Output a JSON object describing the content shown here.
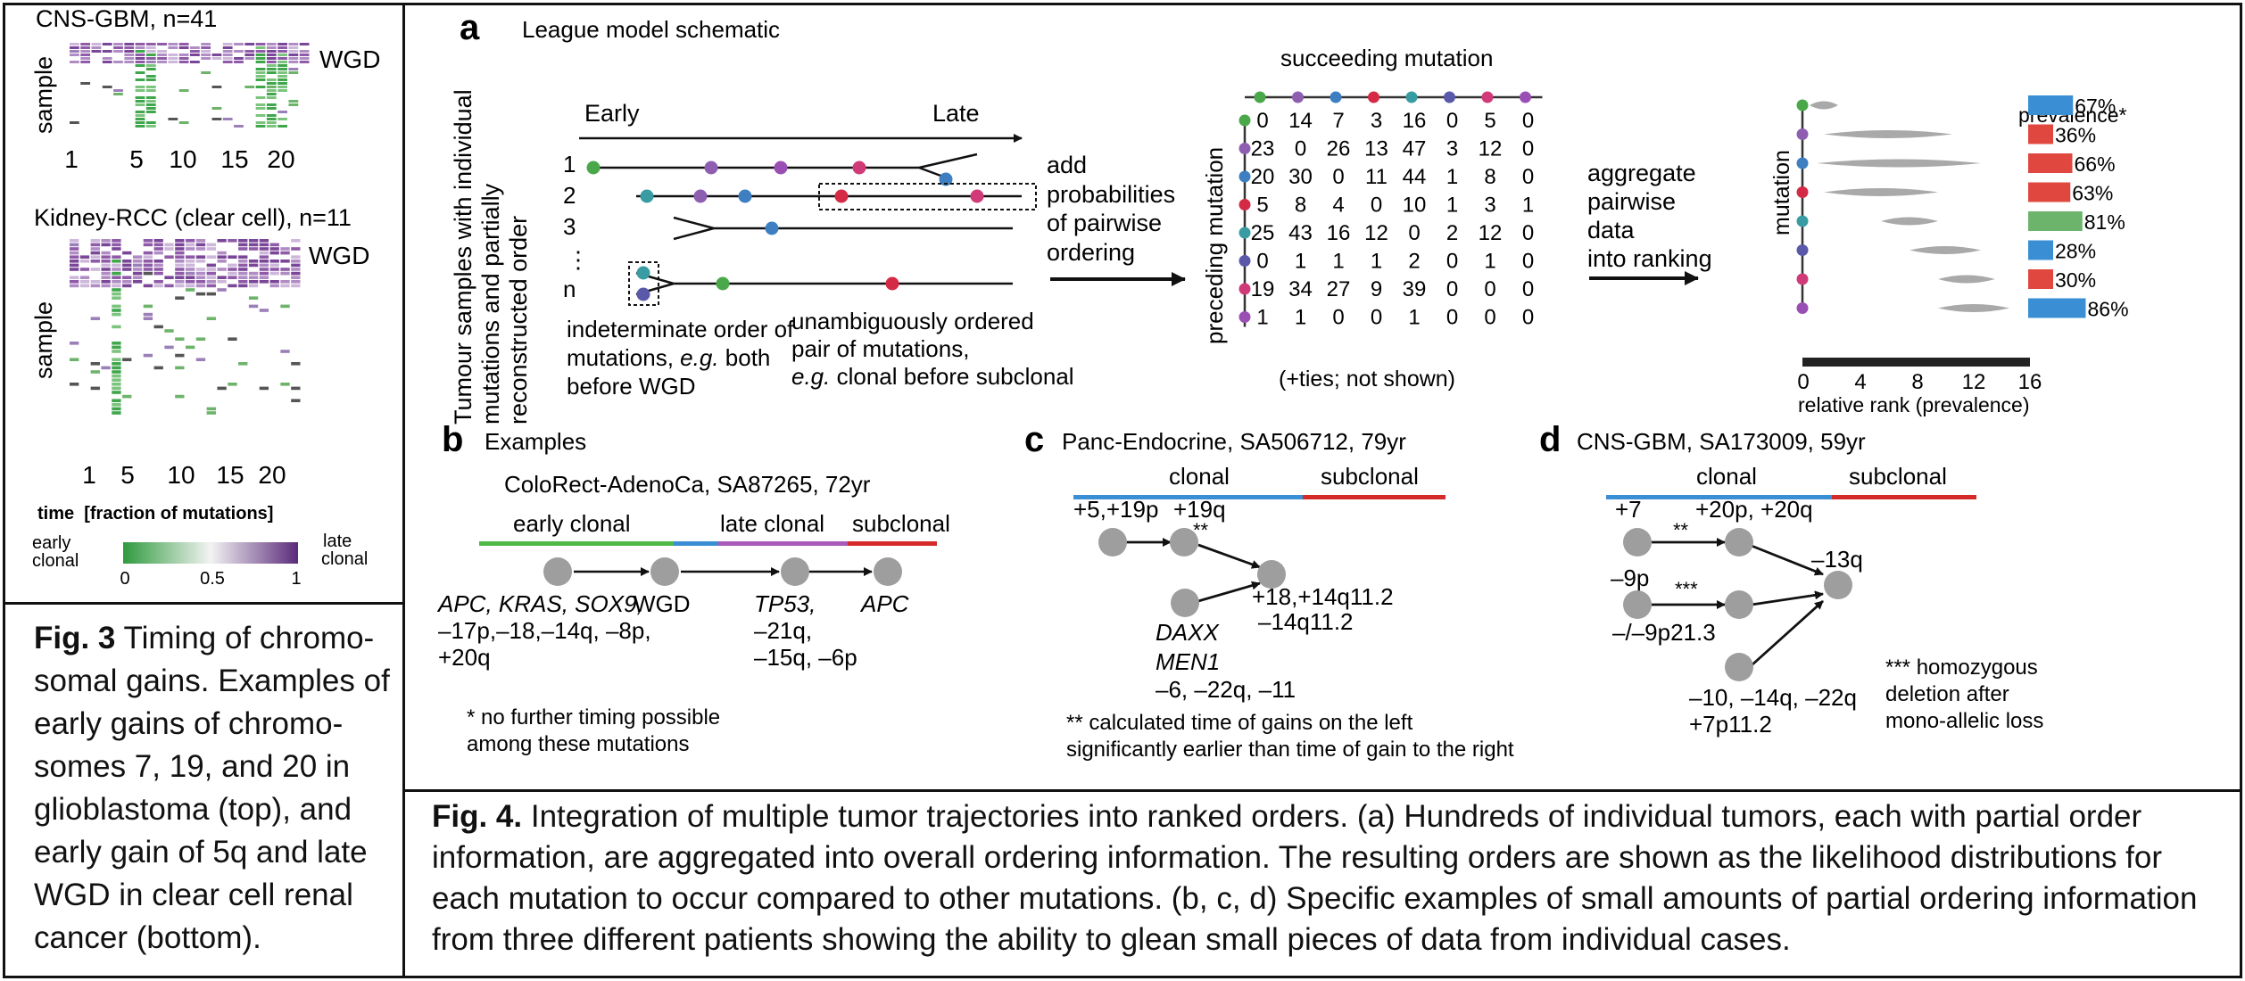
{
  "fig3": {
    "top_title": "CNS-GBM, n=41",
    "bottom_title": "Kidney-RCC (clear cell), n=11",
    "wgd_label": "WGD",
    "y_label": "sample",
    "x_ticks": [
      "1",
      "5",
      "10",
      "15",
      "20"
    ],
    "legend_title": "time  [fraction of mutations]",
    "legend_left": "early\nclonal",
    "legend_right": "late\nclonal",
    "legend_ticks": [
      "0",
      "0.5",
      "1"
    ],
    "caption_bold": "Fig. 3",
    "caption_text": " Timing of chromo-somal gains. Examples of early gains of chromo-somes 7, 19, and 20 in glioblastoma (top), and early gain of 5q and late WGD in clear cell renal cancer (bottom)."
  },
  "panel_a": {
    "letter": "a",
    "title": "League model schematic",
    "ylabel_lines": [
      "Tumour samples with individual",
      "mutations and partially",
      "reconstructed order"
    ],
    "early": "Early",
    "late": "Late",
    "rows": [
      "1",
      "2",
      "3",
      ":",
      "n"
    ],
    "indeterminate_note": [
      "indeterminate order of",
      "mutations, e.g. both",
      "before WGD"
    ],
    "unambiguous_note": [
      "unambiguously ordered",
      "pair of mutations,",
      "e.g. clonal before subclonal"
    ],
    "step1": [
      "add",
      "probabilities",
      "of pairwise",
      "ordering"
    ],
    "matrix_title": "succeeding mutation",
    "matrix_ylabel": "preceding mutation",
    "matrix_note": "(+ties; not shown)",
    "mutation_colors": [
      "#4aa84a",
      "#8e5fb0",
      "#3d7fc1",
      "#d42a45",
      "#3a9ca3",
      "#5a58a8",
      "#d03a78",
      "#9a4fb5"
    ],
    "matrix": [
      [
        "0",
        "14",
        "7",
        "3",
        "16",
        "0",
        "5",
        "0"
      ],
      [
        "23",
        "0",
        "26",
        "13",
        "47",
        "3",
        "12",
        "0"
      ],
      [
        "20",
        "30",
        "0",
        "11",
        "44",
        "1",
        "8",
        "0"
      ],
      [
        "5",
        "8",
        "4",
        "0",
        "10",
        "1",
        "3",
        "1"
      ],
      [
        "25",
        "43",
        "16",
        "12",
        "0",
        "2",
        "12",
        "0"
      ],
      [
        "0",
        "1",
        "1",
        "1",
        "2",
        "0",
        "1",
        "0"
      ],
      [
        "19",
        "34",
        "27",
        "9",
        "39",
        "0",
        "0",
        "0"
      ],
      [
        "1",
        "1",
        "0",
        "0",
        "1",
        "0",
        "0",
        "0"
      ]
    ],
    "step2": [
      "aggregate",
      "pairwise",
      "data",
      "into ranking"
    ],
    "rank_ylabel": "mutation",
    "prevalence_title": "prevalence*",
    "prevalence": [
      {
        "label": "67%",
        "value": 67,
        "color": "#3a8fd4"
      },
      {
        "label": "36%",
        "value": 36,
        "color": "#e0483f"
      },
      {
        "label": "66%",
        "value": 66,
        "color": "#e0483f"
      },
      {
        "label": "63%",
        "value": 63,
        "color": "#e0483f"
      },
      {
        "label": "81%",
        "value": 81,
        "color": "#6cb36c"
      },
      {
        "label": "28%",
        "value": 28,
        "color": "#3a8fd4"
      },
      {
        "label": "30%",
        "value": 30,
        "color": "#e0483f"
      },
      {
        "label": "86%",
        "value": 86,
        "color": "#3a8fd4"
      }
    ],
    "rank_ticks": [
      "0",
      "4",
      "8",
      "12",
      "16"
    ],
    "rank_xlabel": "relative rank (prevalence)"
  },
  "panel_b": {
    "letter": "b",
    "title": "Examples",
    "sample": "ColoRect-AdenoCa, SA87265, 72yr",
    "seg_labels": [
      "early clonal",
      "late clonal",
      "subclonal"
    ],
    "node1_lines": [
      "APC, KRAS, SOX9,",
      "–17p,–18,–14q, –8p,",
      "+20q"
    ],
    "node2": "WGD",
    "node3_lines": [
      "TP53,",
      "–21q,",
      "–15q, –6p"
    ],
    "node4": "APC",
    "note": [
      "* no further timing possible",
      "among these mutations"
    ]
  },
  "panel_c": {
    "letter": "c",
    "title": "Panc-Endocrine, SA506712, 79yr",
    "clonal": "clonal",
    "subclonal": "subclonal",
    "n1": "+5,+19p",
    "n2": "+19q",
    "stars": "**",
    "n3_lines": [
      "+18,+14q11.2",
      "–14q11.2"
    ],
    "n4_lines": [
      "DAXX",
      "MEN1"
    ],
    "n4_extra": "–6, –22q, –11",
    "note": [
      "** calculated time of gains on the left",
      "significantly earlier than time of gain to the right"
    ]
  },
  "panel_d": {
    "letter": "d",
    "title": "CNS-GBM, SA173009, 59yr",
    "clonal": "clonal",
    "subclonal": "subclonal",
    "n1": "+7",
    "n2": "+20p, +20q",
    "n3": "–9p",
    "n4": "–/–9p21.3",
    "n5": "–13q",
    "n6_lines": [
      "–10, –14q, –22q",
      "+7p11.2"
    ],
    "stars2": "**",
    "stars3": "***",
    "note": [
      "*** homozygous",
      "deletion after",
      "mono-allelic loss"
    ]
  },
  "fig4_caption": {
    "bold": "Fig. 4.",
    "text": " Integration of multiple tumor trajectories into ranked orders. (a) Hundreds of individual tumors, each with partial order information, are aggregated into overall ordering information. The resulting orders are shown as the likelihood distributions for each mutation to occur compared to other mutations. (b, c, d) Specific examples of small amounts of partial ordering information from three different patients showing the ability to glean small pieces of data from individual cases."
  }
}
